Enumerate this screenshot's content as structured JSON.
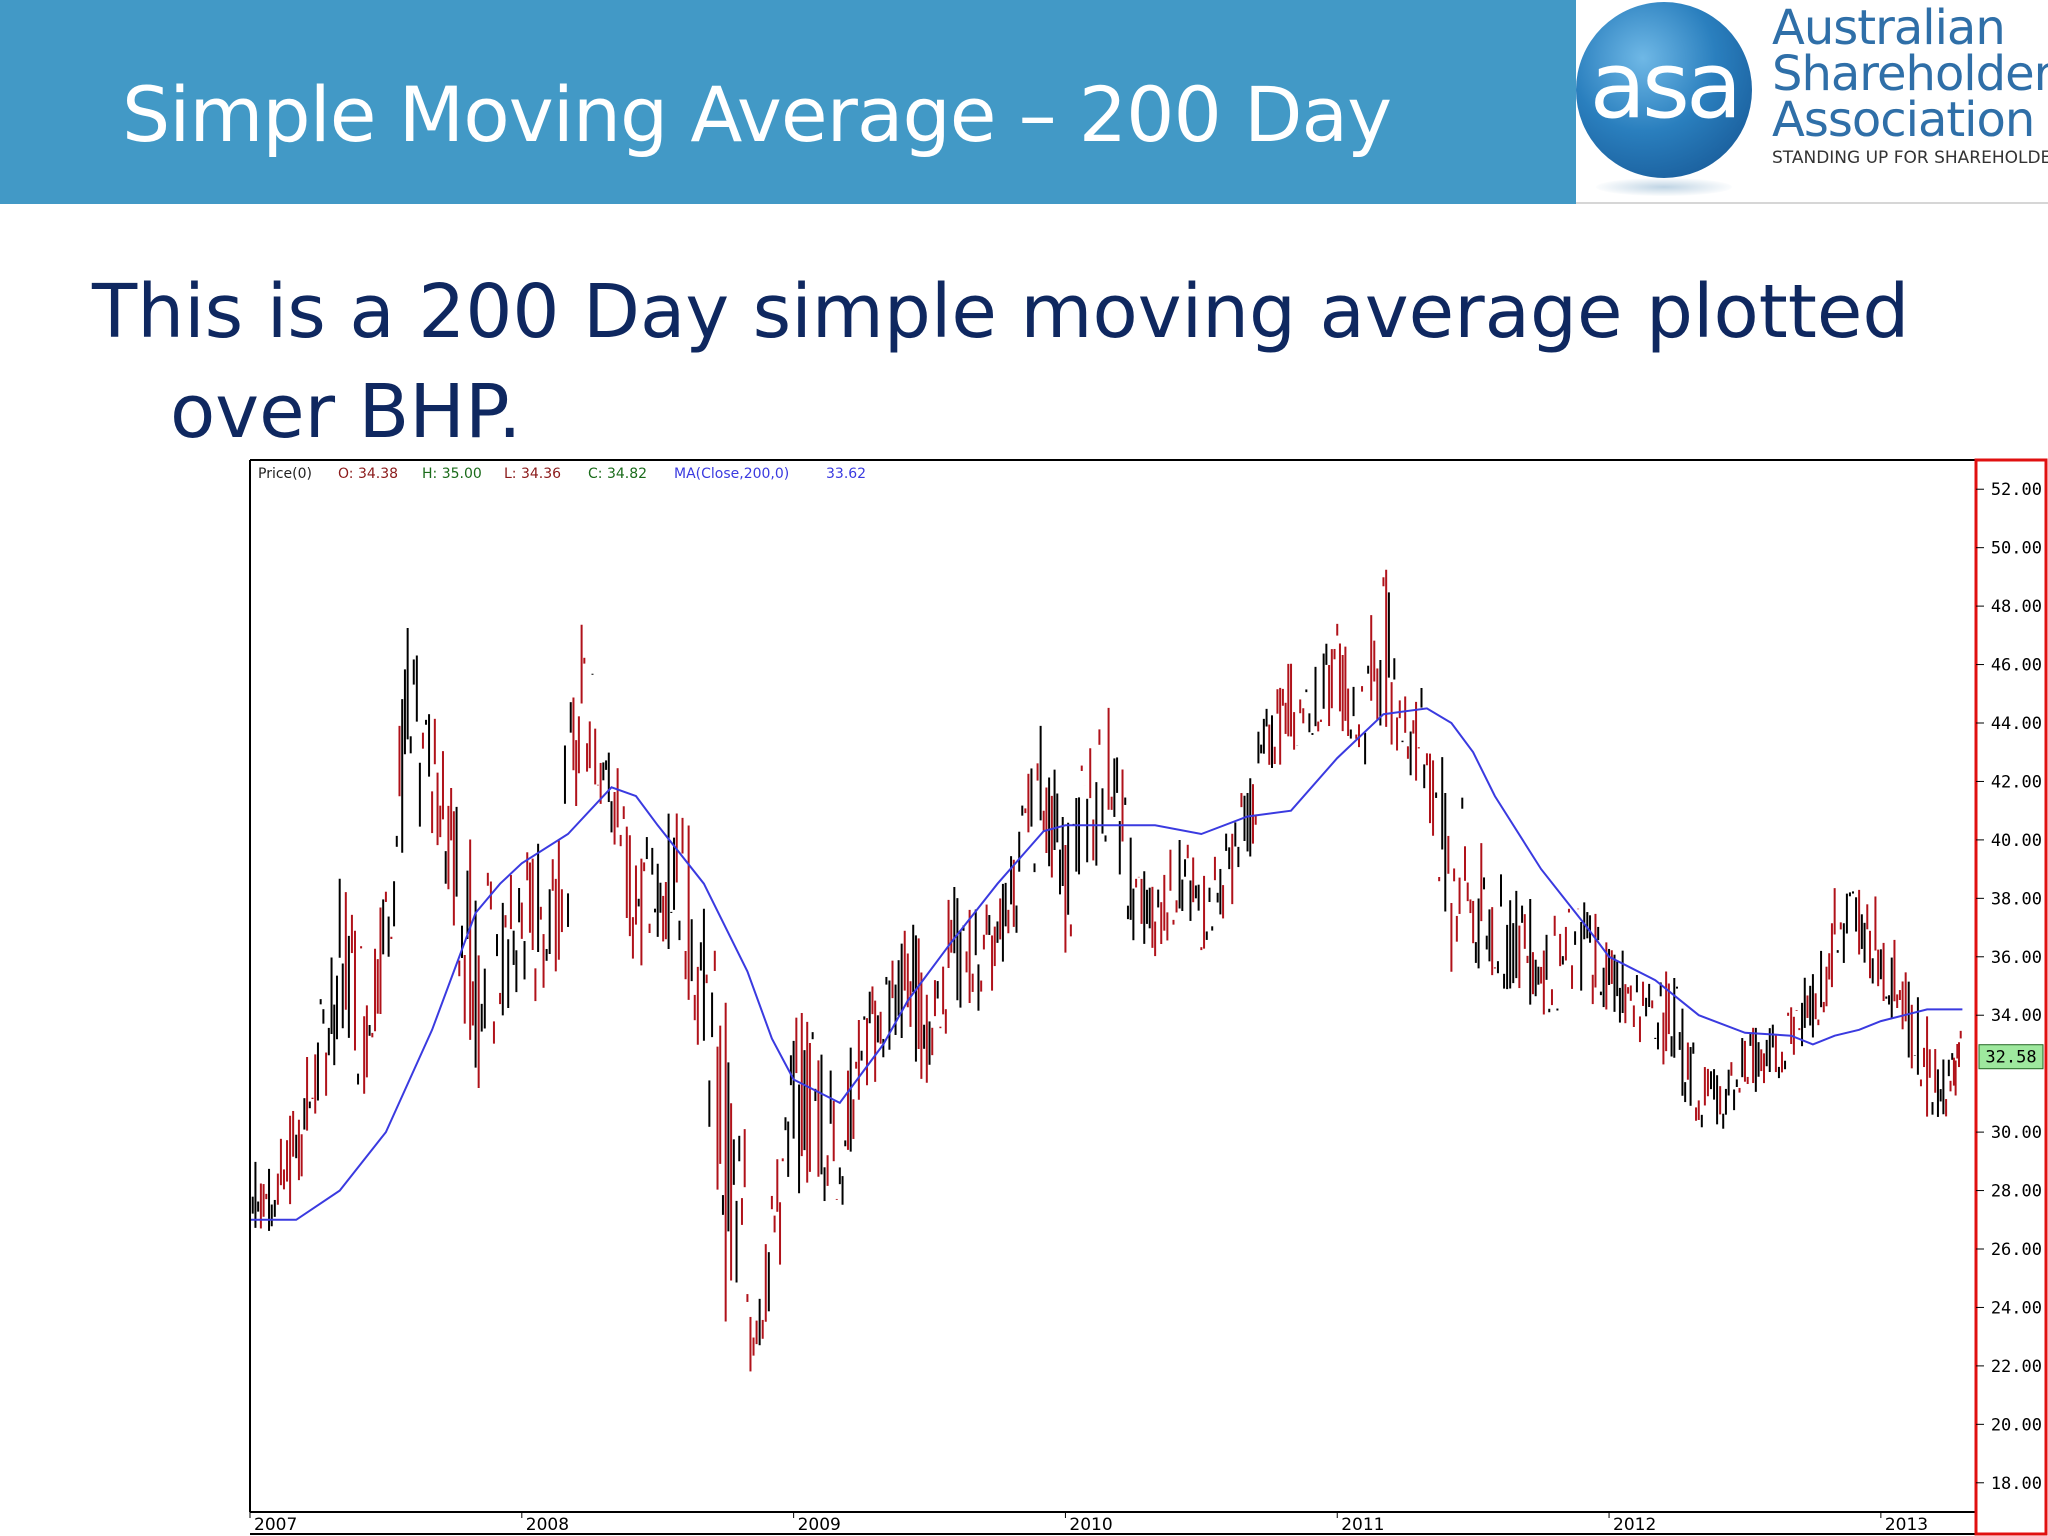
{
  "slide": {
    "title": "Simple Moving Average – 200 Day",
    "body_line1": "This is a 200 Day simple moving average plotted",
    "body_line2": "over BHP."
  },
  "logo": {
    "mark": "asa",
    "line1": "Australian",
    "line2": "Shareholders'",
    "line3": "Association",
    "tagline": "STANDING UP FOR SHAREHOLDERS"
  },
  "colors": {
    "header": "#4299c6",
    "body_text": "#0f2860",
    "bar_up": "#000000",
    "bar_down": "#b0121a",
    "ma_line": "#3a3ae0",
    "axis_border": "#e01010",
    "last_price_bg": "#9ee89e"
  },
  "chart_data": {
    "type": "line",
    "legend": {
      "price_label": "Price(0)",
      "open": "O: 34.38",
      "high": "H: 35.00",
      "low": "L: 34.36",
      "close": "C: 34.82",
      "ma_label": "MA(Close,200,0)",
      "ma_value": "33.62"
    },
    "x_labels": [
      "2007",
      "2008",
      "2009",
      "2010",
      "2011",
      "2012",
      "2013"
    ],
    "xlim": [
      2007.0,
      2013.35
    ],
    "ylim": [
      17.0,
      53.0
    ],
    "y_ticks": [
      "52.00",
      "50.00",
      "48.00",
      "46.00",
      "44.00",
      "42.00",
      "40.00",
      "38.00",
      "36.00",
      "34.00",
      "30.00",
      "28.00",
      "26.00",
      "24.00",
      "22.00",
      "20.00",
      "18.00"
    ],
    "last_price": "32.58",
    "price_series": {
      "name": "BHP",
      "x": [
        2007.0,
        2007.08,
        2007.17,
        2007.25,
        2007.33,
        2007.42,
        2007.5,
        2007.58,
        2007.67,
        2007.75,
        2007.83,
        2007.92,
        2008.0,
        2008.08,
        2008.17,
        2008.25,
        2008.33,
        2008.42,
        2008.5,
        2008.58,
        2008.67,
        2008.75,
        2008.83,
        2008.92,
        2009.0,
        2009.08,
        2009.17,
        2009.25,
        2009.33,
        2009.42,
        2009.5,
        2009.58,
        2009.67,
        2009.75,
        2009.83,
        2009.92,
        2010.0,
        2010.08,
        2010.17,
        2010.25,
        2010.33,
        2010.42,
        2010.5,
        2010.58,
        2010.67,
        2010.75,
        2010.83,
        2010.92,
        2011.0,
        2011.08,
        2011.17,
        2011.25,
        2011.33,
        2011.42,
        2011.5,
        2011.58,
        2011.67,
        2011.75,
        2011.83,
        2011.92,
        2012.0,
        2012.08,
        2012.17,
        2012.25,
        2012.33,
        2012.42,
        2012.5,
        2012.58,
        2012.67,
        2012.75,
        2012.83,
        2012.92,
        2013.0,
        2013.08,
        2013.17,
        2013.25,
        2013.3
      ],
      "high": [
        29.5,
        28.8,
        31.5,
        34.0,
        39.5,
        37.0,
        39.5,
        47.5,
        44.5,
        42.0,
        40.5,
        38.0,
        40.0,
        40.0,
        44.0,
        50.0,
        44.0,
        40.5,
        40.0,
        42.0,
        38.0,
        35.0,
        29.5,
        28.0,
        34.0,
        34.5,
        31.5,
        34.5,
        36.0,
        38.0,
        35.5,
        38.5,
        38.0,
        38.0,
        41.0,
        44.5,
        40.5,
        43.5,
        45.0,
        40.0,
        38.5,
        40.5,
        39.0,
        40.0,
        42.5,
        45.0,
        46.5,
        46.0,
        47.5,
        46.0,
        49.8,
        46.0,
        45.0,
        42.5,
        40.5,
        39.0,
        38.5,
        37.5,
        37.5,
        38.5,
        37.0,
        36.0,
        35.5,
        35.5,
        32.5,
        32.0,
        34.0,
        33.5,
        35.0,
        35.5,
        38.5,
        39.0,
        38.0,
        36.0,
        34.0,
        32.5,
        34.0
      ],
      "low": [
        26.5,
        26.5,
        27.5,
        30.0,
        33.0,
        31.0,
        35.0,
        40.0,
        40.0,
        36.0,
        31.0,
        33.0,
        34.5,
        34.0,
        37.0,
        42.0,
        39.0,
        35.5,
        36.0,
        36.5,
        31.0,
        23.5,
        20.0,
        24.0,
        27.0,
        28.0,
        27.0,
        31.0,
        32.0,
        33.0,
        31.0,
        34.0,
        34.0,
        35.0,
        37.0,
        40.0,
        36.0,
        38.5,
        40.0,
        35.5,
        36.0,
        37.0,
        36.0,
        37.0,
        39.0,
        42.0,
        43.0,
        43.5,
        44.0,
        42.0,
        44.0,
        42.0,
        41.0,
        34.5,
        35.0,
        35.0,
        34.5,
        34.0,
        34.0,
        34.5,
        34.0,
        33.0,
        33.0,
        31.0,
        30.0,
        30.0,
        31.5,
        31.0,
        32.5,
        33.0,
        35.0,
        36.0,
        34.5,
        33.0,
        30.5,
        30.5,
        32.0
      ]
    },
    "ma_series": {
      "name": "MA(Close,200,0)",
      "x": [
        2007.0,
        2007.17,
        2007.33,
        2007.5,
        2007.67,
        2007.83,
        2007.92,
        2008.0,
        2008.17,
        2008.33,
        2008.42,
        2008.5,
        2008.67,
        2008.83,
        2008.92,
        2009.0,
        2009.17,
        2009.33,
        2009.42,
        2009.58,
        2009.75,
        2009.92,
        2010.0,
        2010.17,
        2010.33,
        2010.5,
        2010.67,
        2010.83,
        2011.0,
        2011.17,
        2011.33,
        2011.42,
        2011.5,
        2011.58,
        2011.75,
        2011.92,
        2012.0,
        2012.17,
        2012.33,
        2012.5,
        2012.67,
        2012.75,
        2012.83,
        2012.92,
        2013.0,
        2013.17,
        2013.3
      ],
      "y": [
        27.0,
        27.0,
        28.0,
        30.0,
        33.5,
        37.5,
        38.5,
        39.2,
        40.2,
        41.8,
        41.5,
        40.5,
        38.5,
        35.5,
        33.2,
        31.8,
        31.0,
        33.0,
        34.5,
        36.5,
        38.5,
        40.3,
        40.5,
        40.5,
        40.5,
        40.2,
        40.8,
        41.0,
        42.8,
        44.3,
        44.5,
        44.0,
        43.0,
        41.5,
        39.0,
        37.0,
        36.0,
        35.2,
        34.0,
        33.4,
        33.3,
        33.0,
        33.3,
        33.5,
        33.8,
        34.2,
        34.2
      ]
    }
  }
}
